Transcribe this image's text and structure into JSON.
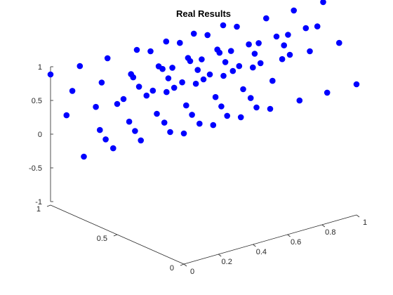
{
  "chart_data": {
    "type": "scatter3d",
    "title": "Real Results",
    "xlabel": "",
    "ylabel": "",
    "zlabel": "",
    "xlim": [
      0,
      1
    ],
    "ylim": [
      0,
      1
    ],
    "zlim": [
      -1,
      1
    ],
    "x_ticks": [
      "0",
      "0.2",
      "0.4",
      "0.6",
      "0.8",
      "1"
    ],
    "y_ticks": [
      "0",
      "0.5",
      "1"
    ],
    "z_ticks": [
      "-1",
      "-0.5",
      "0",
      "0.5",
      "1"
    ],
    "grid": false,
    "marker_color": "#0000ff",
    "points": [
      {
        "x": 0.0,
        "y": 1.0,
        "z": 0.0
      },
      {
        "x": 0.0,
        "y": 0.88,
        "z": -0.5
      },
      {
        "x": 0.0,
        "y": 0.75,
        "z": -1.0
      },
      {
        "x": 0.0,
        "y": 0.63,
        "z": -0.5
      },
      {
        "x": 0.0,
        "y": 0.5,
        "z": 0.0
      },
      {
        "x": 0.0,
        "y": 0.38,
        "z": 0.5
      },
      {
        "x": 0.0,
        "y": 0.25,
        "z": 1.0
      },
      {
        "x": 0.0,
        "y": 0.13,
        "z": 0.5
      },
      {
        "x": 0.0,
        "y": 0.0,
        "z": 0.0
      },
      {
        "x": 0.17,
        "y": 1.0,
        "z": 0.0
      },
      {
        "x": 0.17,
        "y": 0.88,
        "z": -0.5
      },
      {
        "x": 0.17,
        "y": 0.75,
        "z": -1.0
      },
      {
        "x": 0.17,
        "y": 0.63,
        "z": -0.5
      },
      {
        "x": 0.17,
        "y": 0.5,
        "z": 0.0
      },
      {
        "x": 0.17,
        "y": 0.38,
        "z": 0.5
      },
      {
        "x": 0.17,
        "y": 0.25,
        "z": 1.0
      },
      {
        "x": 0.17,
        "y": 0.13,
        "z": 0.5
      },
      {
        "x": 0.17,
        "y": 0.0,
        "z": 0.0
      },
      {
        "x": 0.33,
        "y": 1.0,
        "z": 0.0
      },
      {
        "x": 0.33,
        "y": 0.88,
        "z": -0.5
      },
      {
        "x": 0.33,
        "y": 0.75,
        "z": -1.0
      },
      {
        "x": 0.33,
        "y": 0.63,
        "z": -0.5
      },
      {
        "x": 0.33,
        "y": 0.5,
        "z": 0.0
      },
      {
        "x": 0.33,
        "y": 0.38,
        "z": 0.5
      },
      {
        "x": 0.33,
        "y": 0.25,
        "z": 1.0
      },
      {
        "x": 0.33,
        "y": 0.13,
        "z": 0.5
      },
      {
        "x": 0.33,
        "y": 0.0,
        "z": 0.0
      },
      {
        "x": 0.5,
        "y": 1.0,
        "z": 0.0
      },
      {
        "x": 0.5,
        "y": 0.88,
        "z": -0.5
      },
      {
        "x": 0.5,
        "y": 0.75,
        "z": -1.0
      },
      {
        "x": 0.5,
        "y": 0.63,
        "z": -0.5
      },
      {
        "x": 0.5,
        "y": 0.5,
        "z": 0.0
      },
      {
        "x": 0.5,
        "y": 0.38,
        "z": 0.5
      },
      {
        "x": 0.5,
        "y": 0.25,
        "z": 1.0
      },
      {
        "x": 0.5,
        "y": 0.13,
        "z": 0.5
      },
      {
        "x": 0.5,
        "y": 0.0,
        "z": 0.0
      },
      {
        "x": 0.67,
        "y": 1.0,
        "z": 0.0
      },
      {
        "x": 0.67,
        "y": 0.88,
        "z": -0.5
      },
      {
        "x": 0.67,
        "y": 0.75,
        "z": -1.0
      },
      {
        "x": 0.67,
        "y": 0.63,
        "z": -0.5
      },
      {
        "x": 0.67,
        "y": 0.5,
        "z": 0.0
      },
      {
        "x": 0.67,
        "y": 0.38,
        "z": 0.5
      },
      {
        "x": 0.67,
        "y": 0.25,
        "z": 1.0
      },
      {
        "x": 0.67,
        "y": 0.13,
        "z": 0.5
      },
      {
        "x": 0.67,
        "y": 0.0,
        "z": 0.0
      },
      {
        "x": 0.83,
        "y": 1.0,
        "z": 0.0
      },
      {
        "x": 0.83,
        "y": 0.88,
        "z": -0.5
      },
      {
        "x": 0.83,
        "y": 0.75,
        "z": -1.0
      },
      {
        "x": 0.83,
        "y": 0.63,
        "z": -0.5
      },
      {
        "x": 0.83,
        "y": 0.5,
        "z": 0.0
      },
      {
        "x": 0.83,
        "y": 0.38,
        "z": 0.5
      },
      {
        "x": 0.83,
        "y": 0.25,
        "z": 1.0
      },
      {
        "x": 0.83,
        "y": 0.13,
        "z": 0.5
      },
      {
        "x": 0.83,
        "y": 0.0,
        "z": 0.0
      },
      {
        "x": 1.0,
        "y": 1.0,
        "z": 0.0
      },
      {
        "x": 1.0,
        "y": 0.88,
        "z": -0.5
      },
      {
        "x": 1.0,
        "y": 0.75,
        "z": -1.0
      },
      {
        "x": 1.0,
        "y": 0.63,
        "z": -0.5
      },
      {
        "x": 1.0,
        "y": 0.5,
        "z": 0.0
      },
      {
        "x": 1.0,
        "y": 0.38,
        "z": 0.5
      },
      {
        "x": 1.0,
        "y": 0.25,
        "z": 1.0
      },
      {
        "x": 1.0,
        "y": 0.13,
        "z": 0.5
      },
      {
        "x": 1.0,
        "y": 0.0,
        "z": 0.0
      },
      {
        "x": 0.08,
        "y": 0.94,
        "z": -0.25
      },
      {
        "x": 0.08,
        "y": 0.69,
        "z": -0.75
      },
      {
        "x": 0.08,
        "y": 0.44,
        "z": 0.25
      },
      {
        "x": 0.08,
        "y": 0.19,
        "z": 0.75
      },
      {
        "x": 0.25,
        "y": 0.94,
        "z": -0.25
      },
      {
        "x": 0.25,
        "y": 0.69,
        "z": -0.75
      },
      {
        "x": 0.25,
        "y": 0.44,
        "z": 0.25
      },
      {
        "x": 0.25,
        "y": 0.19,
        "z": 0.75
      },
      {
        "x": 0.42,
        "y": 0.94,
        "z": -0.25
      },
      {
        "x": 0.42,
        "y": 0.69,
        "z": -0.75
      },
      {
        "x": 0.42,
        "y": 0.44,
        "z": 0.25
      },
      {
        "x": 0.42,
        "y": 0.19,
        "z": 0.75
      },
      {
        "x": 0.58,
        "y": 0.94,
        "z": -0.25
      },
      {
        "x": 0.58,
        "y": 0.69,
        "z": -0.75
      },
      {
        "x": 0.58,
        "y": 0.44,
        "z": 0.25
      },
      {
        "x": 0.58,
        "y": 0.19,
        "z": 0.75
      },
      {
        "x": 0.75,
        "y": 0.94,
        "z": -0.25
      },
      {
        "x": 0.75,
        "y": 0.69,
        "z": -0.75
      },
      {
        "x": 0.75,
        "y": 0.44,
        "z": 0.25
      },
      {
        "x": 0.75,
        "y": 0.19,
        "z": 0.75
      },
      {
        "x": 0.92,
        "y": 0.94,
        "z": -0.25
      },
      {
        "x": 0.92,
        "y": 0.69,
        "z": -0.75
      },
      {
        "x": 0.92,
        "y": 0.44,
        "z": 0.25
      },
      {
        "x": 0.92,
        "y": 0.19,
        "z": 0.75
      }
    ]
  }
}
